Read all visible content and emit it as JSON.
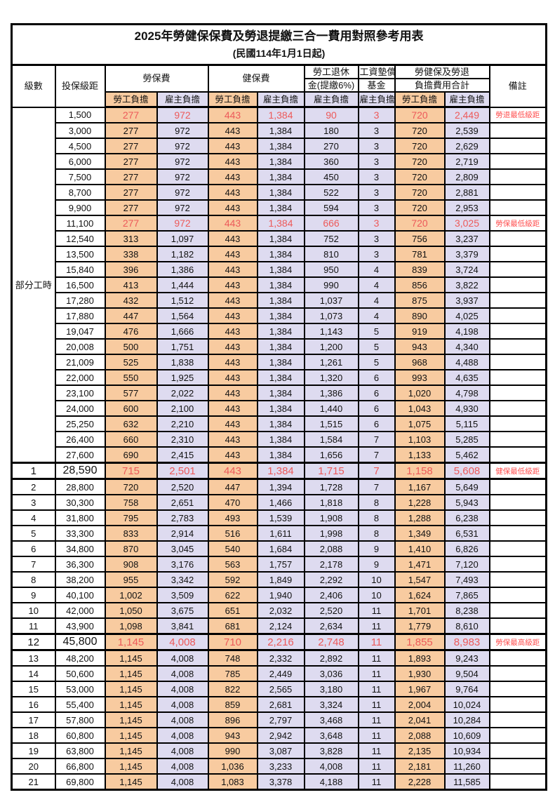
{
  "doc": {
    "title": "2025年勞健保保費及勞退提繳三合一費用對照參考用表",
    "subtitle": "(民國114年1月1日起)"
  },
  "colors": {
    "employee_bg": "#F8CBA0",
    "employer_bg": "#DEDBF0",
    "highlight_text": "#ED5A5A",
    "note_text": "#FF5050"
  },
  "table": {
    "headers": {
      "grade": "級數",
      "bracket": "投保級距",
      "labor_ins": "勞保費",
      "health_ins": "健保費",
      "pension_line1": "勞工退休",
      "pension_line2": "金(提繳6%)",
      "wage_fund_line1": "工資墊償",
      "wage_fund_line2": "基金",
      "total_line1": "勞健保及勞退",
      "total_line2": "負擔費用合計",
      "employee": "勞工負擔",
      "employer": "雇主負擔",
      "note": "備註"
    },
    "section_label": "部分工時",
    "part_time_rowspan": 23,
    "rows": [
      {
        "g": "",
        "b": "1,500",
        "v": [
          "277",
          "972",
          "443",
          "1,384",
          "90",
          "3",
          "720",
          "2,449"
        ],
        "n": "勞退最低級距",
        "hl": true,
        "big": false
      },
      {
        "g": "",
        "b": "3,000",
        "v": [
          "277",
          "972",
          "443",
          "1,384",
          "180",
          "3",
          "720",
          "2,539"
        ],
        "n": "",
        "hl": false,
        "big": false
      },
      {
        "g": "",
        "b": "4,500",
        "v": [
          "277",
          "972",
          "443",
          "1,384",
          "270",
          "3",
          "720",
          "2,629"
        ],
        "n": "",
        "hl": false,
        "big": false
      },
      {
        "g": "",
        "b": "6,000",
        "v": [
          "277",
          "972",
          "443",
          "1,384",
          "360",
          "3",
          "720",
          "2,719"
        ],
        "n": "",
        "hl": false,
        "big": false
      },
      {
        "g": "",
        "b": "7,500",
        "v": [
          "277",
          "972",
          "443",
          "1,384",
          "450",
          "3",
          "720",
          "2,809"
        ],
        "n": "",
        "hl": false,
        "big": false
      },
      {
        "g": "",
        "b": "8,700",
        "v": [
          "277",
          "972",
          "443",
          "1,384",
          "522",
          "3",
          "720",
          "2,881"
        ],
        "n": "",
        "hl": false,
        "big": false
      },
      {
        "g": "",
        "b": "9,900",
        "v": [
          "277",
          "972",
          "443",
          "1,384",
          "594",
          "3",
          "720",
          "2,953"
        ],
        "n": "",
        "hl": false,
        "big": false
      },
      {
        "g": "",
        "b": "11,100",
        "v": [
          "277",
          "972",
          "443",
          "1,384",
          "666",
          "3",
          "720",
          "3,025"
        ],
        "n": "勞保最低級距",
        "hl": true,
        "big": false
      },
      {
        "g": "",
        "b": "12,540",
        "v": [
          "313",
          "1,097",
          "443",
          "1,384",
          "752",
          "3",
          "756",
          "3,237"
        ],
        "n": "",
        "hl": false,
        "big": false
      },
      {
        "g": "",
        "b": "13,500",
        "v": [
          "338",
          "1,182",
          "443",
          "1,384",
          "810",
          "3",
          "781",
          "3,379"
        ],
        "n": "",
        "hl": false,
        "big": false
      },
      {
        "g": "",
        "b": "15,840",
        "v": [
          "396",
          "1,386",
          "443",
          "1,384",
          "950",
          "4",
          "839",
          "3,724"
        ],
        "n": "",
        "hl": false,
        "big": false
      },
      {
        "g": "",
        "b": "16,500",
        "v": [
          "413",
          "1,444",
          "443",
          "1,384",
          "990",
          "4",
          "856",
          "3,822"
        ],
        "n": "",
        "hl": false,
        "big": false
      },
      {
        "g": "",
        "b": "17,280",
        "v": [
          "432",
          "1,512",
          "443",
          "1,384",
          "1,037",
          "4",
          "875",
          "3,937"
        ],
        "n": "",
        "hl": false,
        "big": false
      },
      {
        "g": "",
        "b": "17,880",
        "v": [
          "447",
          "1,564",
          "443",
          "1,384",
          "1,073",
          "4",
          "890",
          "4,025"
        ],
        "n": "",
        "hl": false,
        "big": false
      },
      {
        "g": "",
        "b": "19,047",
        "v": [
          "476",
          "1,666",
          "443",
          "1,384",
          "1,143",
          "5",
          "919",
          "4,198"
        ],
        "n": "",
        "hl": false,
        "big": false
      },
      {
        "g": "",
        "b": "20,008",
        "v": [
          "500",
          "1,751",
          "443",
          "1,384",
          "1,200",
          "5",
          "943",
          "4,340"
        ],
        "n": "",
        "hl": false,
        "big": false
      },
      {
        "g": "",
        "b": "21,009",
        "v": [
          "525",
          "1,838",
          "443",
          "1,384",
          "1,261",
          "5",
          "968",
          "4,488"
        ],
        "n": "",
        "hl": false,
        "big": false
      },
      {
        "g": "",
        "b": "22,000",
        "v": [
          "550",
          "1,925",
          "443",
          "1,384",
          "1,320",
          "6",
          "993",
          "4,635"
        ],
        "n": "",
        "hl": false,
        "big": false
      },
      {
        "g": "",
        "b": "23,100",
        "v": [
          "577",
          "2,022",
          "443",
          "1,384",
          "1,386",
          "6",
          "1,020",
          "4,798"
        ],
        "n": "",
        "hl": false,
        "big": false
      },
      {
        "g": "",
        "b": "24,000",
        "v": [
          "600",
          "2,100",
          "443",
          "1,384",
          "1,440",
          "6",
          "1,043",
          "4,930"
        ],
        "n": "",
        "hl": false,
        "big": false
      },
      {
        "g": "",
        "b": "25,250",
        "v": [
          "632",
          "2,210",
          "443",
          "1,384",
          "1,515",
          "6",
          "1,075",
          "5,115"
        ],
        "n": "",
        "hl": false,
        "big": false
      },
      {
        "g": "",
        "b": "26,400",
        "v": [
          "660",
          "2,310",
          "443",
          "1,384",
          "1,584",
          "7",
          "1,103",
          "5,285"
        ],
        "n": "",
        "hl": false,
        "big": false
      },
      {
        "g": "",
        "b": "27,600",
        "v": [
          "690",
          "2,415",
          "443",
          "1,384",
          "1,656",
          "7",
          "1,133",
          "5,462"
        ],
        "n": "",
        "hl": false,
        "big": false
      },
      {
        "g": "1",
        "b": "28,590",
        "v": [
          "715",
          "2,501",
          "443",
          "1,384",
          "1,715",
          "7",
          "1,158",
          "5,608"
        ],
        "n": "健保最低級距",
        "hl": true,
        "big": true
      },
      {
        "g": "2",
        "b": "28,800",
        "v": [
          "720",
          "2,520",
          "447",
          "1,394",
          "1,728",
          "7",
          "1,167",
          "5,649"
        ],
        "n": "",
        "hl": false,
        "big": false
      },
      {
        "g": "3",
        "b": "30,300",
        "v": [
          "758",
          "2,651",
          "470",
          "1,466",
          "1,818",
          "8",
          "1,228",
          "5,943"
        ],
        "n": "",
        "hl": false,
        "big": false
      },
      {
        "g": "4",
        "b": "31,800",
        "v": [
          "795",
          "2,783",
          "493",
          "1,539",
          "1,908",
          "8",
          "1,288",
          "6,238"
        ],
        "n": "",
        "hl": false,
        "big": false
      },
      {
        "g": "5",
        "b": "33,300",
        "v": [
          "833",
          "2,914",
          "516",
          "1,611",
          "1,998",
          "8",
          "1,349",
          "6,531"
        ],
        "n": "",
        "hl": false,
        "big": false
      },
      {
        "g": "6",
        "b": "34,800",
        "v": [
          "870",
          "3,045",
          "540",
          "1,684",
          "2,088",
          "9",
          "1,410",
          "6,826"
        ],
        "n": "",
        "hl": false,
        "big": false
      },
      {
        "g": "7",
        "b": "36,300",
        "v": [
          "908",
          "3,176",
          "563",
          "1,757",
          "2,178",
          "9",
          "1,471",
          "7,120"
        ],
        "n": "",
        "hl": false,
        "big": false
      },
      {
        "g": "8",
        "b": "38,200",
        "v": [
          "955",
          "3,342",
          "592",
          "1,849",
          "2,292",
          "10",
          "1,547",
          "7,493"
        ],
        "n": "",
        "hl": false,
        "big": false
      },
      {
        "g": "9",
        "b": "40,100",
        "v": [
          "1,002",
          "3,509",
          "622",
          "1,940",
          "2,406",
          "10",
          "1,624",
          "7,865"
        ],
        "n": "",
        "hl": false,
        "big": false
      },
      {
        "g": "10",
        "b": "42,000",
        "v": [
          "1,050",
          "3,675",
          "651",
          "2,032",
          "2,520",
          "11",
          "1,701",
          "8,238"
        ],
        "n": "",
        "hl": false,
        "big": false
      },
      {
        "g": "11",
        "b": "43,900",
        "v": [
          "1,098",
          "3,841",
          "681",
          "2,124",
          "2,634",
          "11",
          "1,779",
          "8,610"
        ],
        "n": "",
        "hl": false,
        "big": false
      },
      {
        "g": "12",
        "b": "45,800",
        "v": [
          "1,145",
          "4,008",
          "710",
          "2,216",
          "2,748",
          "11",
          "1,855",
          "8,983"
        ],
        "n": "勞保最高級距",
        "hl": true,
        "big": true
      },
      {
        "g": "13",
        "b": "48,200",
        "v": [
          "1,145",
          "4,008",
          "748",
          "2,332",
          "2,892",
          "11",
          "1,893",
          "9,243"
        ],
        "n": "",
        "hl": false,
        "big": false
      },
      {
        "g": "14",
        "b": "50,600",
        "v": [
          "1,145",
          "4,008",
          "785",
          "2,449",
          "3,036",
          "11",
          "1,930",
          "9,504"
        ],
        "n": "",
        "hl": false,
        "big": false
      },
      {
        "g": "15",
        "b": "53,000",
        "v": [
          "1,145",
          "4,008",
          "822",
          "2,565",
          "3,180",
          "11",
          "1,967",
          "9,764"
        ],
        "n": "",
        "hl": false,
        "big": false
      },
      {
        "g": "16",
        "b": "55,400",
        "v": [
          "1,145",
          "4,008",
          "859",
          "2,681",
          "3,324",
          "11",
          "2,004",
          "10,024"
        ],
        "n": "",
        "hl": false,
        "big": false
      },
      {
        "g": "17",
        "b": "57,800",
        "v": [
          "1,145",
          "4,008",
          "896",
          "2,797",
          "3,468",
          "11",
          "2,041",
          "10,284"
        ],
        "n": "",
        "hl": false,
        "big": false
      },
      {
        "g": "18",
        "b": "60,800",
        "v": [
          "1,145",
          "4,008",
          "943",
          "2,942",
          "3,648",
          "11",
          "2,088",
          "10,609"
        ],
        "n": "",
        "hl": false,
        "big": false
      },
      {
        "g": "19",
        "b": "63,800",
        "v": [
          "1,145",
          "4,008",
          "990",
          "3,087",
          "3,828",
          "11",
          "2,135",
          "10,934"
        ],
        "n": "",
        "hl": false,
        "big": false
      },
      {
        "g": "20",
        "b": "66,800",
        "v": [
          "1,145",
          "4,008",
          "1,036",
          "3,233",
          "4,008",
          "11",
          "2,181",
          "11,260"
        ],
        "n": "",
        "hl": false,
        "big": false
      },
      {
        "g": "21",
        "b": "69,800",
        "v": [
          "1,145",
          "4,008",
          "1,083",
          "3,378",
          "4,188",
          "11",
          "2,228",
          "11,585"
        ],
        "n": "",
        "hl": false,
        "big": false
      }
    ]
  }
}
